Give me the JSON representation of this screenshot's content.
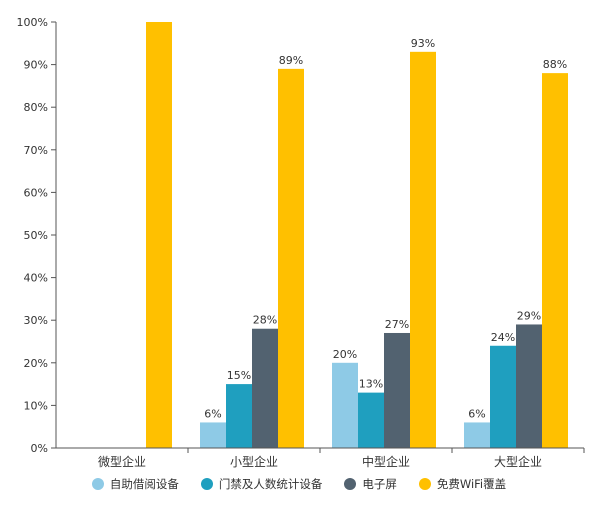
{
  "chart_data": {
    "type": "bar",
    "title": "",
    "xlabel": "",
    "ylabel": "",
    "ylim": [
      0,
      100
    ],
    "yticks": [
      "0%",
      "10%",
      "20%",
      "30%",
      "40%",
      "50%",
      "60%",
      "70%",
      "80%",
      "90%",
      "100%"
    ],
    "categories": [
      "微型企业",
      "小型企业",
      "中型企业",
      "大型企业"
    ],
    "series": [
      {
        "name": "自助借阅设备",
        "color": "#8ecae6",
        "values": [
          null,
          6,
          20,
          6
        ],
        "labels": [
          "",
          "6%",
          "20%",
          "6%"
        ]
      },
      {
        "name": "门禁及人数统计设备",
        "color": "#1f9fbf",
        "values": [
          null,
          15,
          13,
          24
        ],
        "labels": [
          "",
          "15%",
          "13%",
          "24%"
        ]
      },
      {
        "name": "电子屏",
        "color": "#526270",
        "values": [
          null,
          28,
          27,
          29
        ],
        "labels": [
          "",
          "28%",
          "27%",
          "29%"
        ]
      },
      {
        "name": "免费WiFi覆盖",
        "color": "#ffc000",
        "values": [
          100,
          89,
          93,
          88
        ],
        "labels": [
          "",
          "89%",
          "93%",
          "88%"
        ]
      }
    ],
    "grid": false,
    "legend_position": "bottom"
  }
}
